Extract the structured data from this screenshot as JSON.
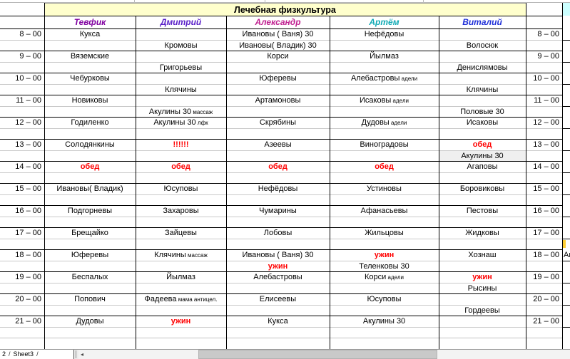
{
  "sheet": {
    "title": "Лечебная физкультура",
    "columns": [
      {
        "label": "Тевфик",
        "color": "#8000a0"
      },
      {
        "label": "Дмитрий",
        "color": "#5a20c8"
      },
      {
        "label": "Александр",
        "color": "#c02090"
      },
      {
        "label": "Артём",
        "color": "#10aab4"
      },
      {
        "label": "Виталий",
        "color": "#2030d8"
      }
    ],
    "colors": {
      "title_bg": "#ffffcc",
      "corner_cell": "#ccffff",
      "alert_text": "#ff0000",
      "shaded_cell": "#efefef"
    },
    "rows": [
      {
        "time": "8 – 00",
        "cells": [
          {
            "t": "Кукса"
          },
          {},
          {
            "t": "Ивановы ( Ваня) 30"
          },
          {
            "t": "Нефёдовы"
          },
          {}
        ]
      },
      {
        "time": "",
        "cells": [
          {},
          {
            "t": "Кромовы"
          },
          {
            "t": "Ивановы( Владик) 30"
          },
          {},
          {
            "t": "Волосюк"
          }
        ]
      },
      {
        "time": "9 – 00",
        "cells": [
          {
            "t": "Вяземские"
          },
          {},
          {
            "t": "Корси"
          },
          {
            "t": "Йылмаз"
          },
          {}
        ]
      },
      {
        "time": "",
        "cells": [
          {},
          {
            "t": "Григорьевы"
          },
          {},
          {},
          {
            "t": "Денислямовы"
          }
        ]
      },
      {
        "time": "10 – 00",
        "cells": [
          {
            "t": "Чебурковы"
          },
          {},
          {
            "t": "Юферевы"
          },
          {
            "t": "Алебастровы",
            "s": "адели"
          },
          {}
        ]
      },
      {
        "time": "",
        "cells": [
          {},
          {
            "t": "Клячины"
          },
          {},
          {},
          {
            "t": "Клячины"
          }
        ]
      },
      {
        "time": "11 – 00",
        "cells": [
          {
            "t": "Новиковы"
          },
          {},
          {
            "t": "Артамоновы"
          },
          {
            "t": "Исаковы",
            "s": "адели"
          },
          {}
        ]
      },
      {
        "time": "",
        "cells": [
          {},
          {
            "t": "Акулины 30",
            "s": "массаж"
          },
          {},
          {},
          {
            "t": "Половые 30"
          }
        ]
      },
      {
        "time": "12 – 00",
        "cells": [
          {
            "t": "Годиленко"
          },
          {
            "t": "Акулины 30",
            "s": "лфк"
          },
          {
            "t": "Скрябины"
          },
          {
            "t": "Дудовы",
            "s": "адели"
          },
          {
            "t": "Исаковы"
          }
        ]
      },
      {
        "time": "",
        "cells": [
          {},
          {},
          {},
          {},
          {}
        ]
      },
      {
        "time": "13 – 00",
        "cells": [
          {
            "t": "Солодянкины"
          },
          {
            "t": "!!!!!!",
            "red": true
          },
          {
            "t": "Азеевы"
          },
          {
            "t": "Виноградовы"
          },
          {
            "t": "обед",
            "red": true
          }
        ]
      },
      {
        "time": "",
        "cells": [
          {},
          {},
          {},
          {},
          {
            "t": "Акулины 30",
            "bg": true
          }
        ]
      },
      {
        "time": "14 – 00",
        "cells": [
          {
            "t": "обед",
            "red": true
          },
          {
            "t": "обед",
            "red": true
          },
          {
            "t": "обед",
            "red": true
          },
          {
            "t": "обед",
            "red": true
          },
          {
            "t": "Агаповы"
          }
        ]
      },
      {
        "time": "",
        "cells": [
          {},
          {},
          {},
          {},
          {}
        ]
      },
      {
        "time": "15 – 00",
        "cells": [
          {
            "t": "Ивановы( Владик)"
          },
          {
            "t": "Юсуповы"
          },
          {
            "t": "Нефёдовы"
          },
          {
            "t": "Устиновы"
          },
          {
            "t": "Боровиковы"
          }
        ]
      },
      {
        "time": "",
        "cells": [
          {},
          {},
          {},
          {},
          {}
        ]
      },
      {
        "time": "16 – 00",
        "cells": [
          {
            "t": "Подгорневы"
          },
          {
            "t": "Захаровы"
          },
          {
            "t": "Чумарины"
          },
          {
            "t": "Афанасьевы"
          },
          {
            "t": "Пестовы"
          }
        ]
      },
      {
        "time": "",
        "cells": [
          {},
          {},
          {},
          {},
          {}
        ]
      },
      {
        "time": "17 – 00",
        "cells": [
          {
            "t": "Брещайко"
          },
          {
            "t": "Зайцевы"
          },
          {
            "t": "Лобовы"
          },
          {
            "t": "Жильцовы"
          },
          {
            "t": "Жидковы"
          }
        ]
      },
      {
        "time": "",
        "cells": [
          {},
          {},
          {},
          {},
          {}
        ]
      },
      {
        "time": "18 – 00",
        "cells": [
          {
            "t": "Юферевы"
          },
          {
            "t": "Клячины",
            "s": "массаж"
          },
          {
            "t": "Ивановы ( Ваня) 30"
          },
          {
            "t": "ужин",
            "red": true
          },
          {
            "t": "Хознаш"
          }
        ]
      },
      {
        "time": "",
        "cells": [
          {},
          {},
          {
            "t": "ужин",
            "red": true
          },
          {
            "t": "Теленковы 30"
          },
          {}
        ]
      },
      {
        "time": "19 – 00",
        "cells": [
          {
            "t": "Беспалых"
          },
          {
            "t": "Йылмаз"
          },
          {
            "t": "Алебастровы"
          },
          {
            "t": "Корси",
            "s": "адели"
          },
          {
            "t": "ужин",
            "red": true
          }
        ]
      },
      {
        "time": "",
        "cells": [
          {},
          {},
          {},
          {},
          {
            "t": "Рысины"
          }
        ]
      },
      {
        "time": "20 – 00",
        "cells": [
          {
            "t": "Попович"
          },
          {
            "t": "Фадеева",
            "s": "мама антицел."
          },
          {
            "t": "Елисеевы"
          },
          {
            "t": "Юсуповы"
          },
          {}
        ]
      },
      {
        "time": "",
        "cells": [
          {},
          {},
          {},
          {},
          {
            "t": "Гордеевы"
          }
        ]
      },
      {
        "time": "21 – 00",
        "cells": [
          {
            "t": "Дудовы"
          },
          {
            "t": "ужин",
            "red": true
          },
          {
            "t": "Кукса"
          },
          {
            "t": "Акулины 30"
          },
          {}
        ]
      },
      {
        "time": "",
        "cells": [
          {},
          {},
          {},
          {},
          {}
        ]
      }
    ],
    "overflow_column": {
      "row_18_text": "Аг",
      "marker_color": "#ffcf33"
    }
  },
  "bottom": {
    "sheet_tabs": [
      "2",
      "Sheet3"
    ],
    "tab_separator": "/"
  }
}
